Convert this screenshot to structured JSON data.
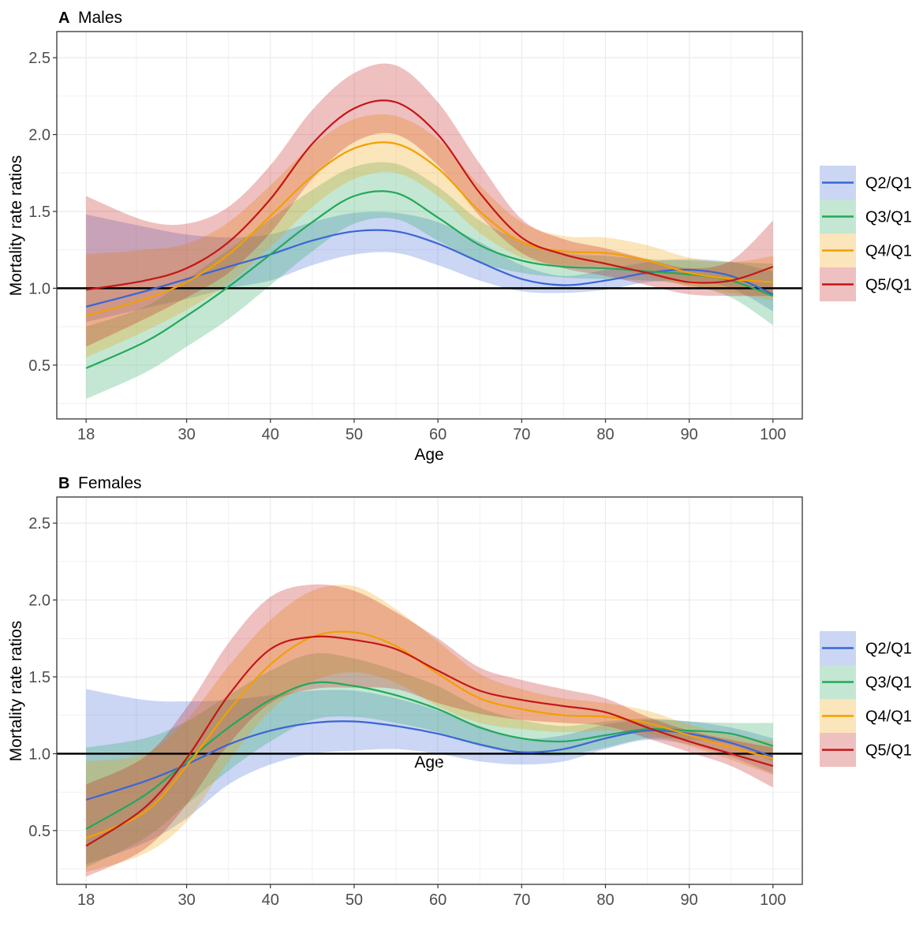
{
  "colors": {
    "Q2/Q1": "#3a66d4",
    "Q3/Q1": "#22a85a",
    "Q4/Q1": "#f2a000",
    "Q5/Q1": "#c41616",
    "reference_line": "#000000",
    "grid": "#ebebeb",
    "panel_border": "#333333"
  },
  "chart_data": [
    {
      "type": "line",
      "panel_letter": "A",
      "title": "Males",
      "xlabel": "Age",
      "ylabel": "Mortality rate ratios",
      "xlim": [
        14.5,
        103.5
      ],
      "ylim": [
        0.15,
        2.67
      ],
      "x_ticks": [
        18,
        30,
        40,
        50,
        60,
        70,
        80,
        90,
        100
      ],
      "y_ticks": [
        0.5,
        1.0,
        1.5,
        2.0,
        2.5
      ],
      "y_tick_labels": [
        "0.5",
        "1.0",
        "1.5",
        "2.0",
        "2.5"
      ],
      "reference_line": 1.0,
      "grid": true,
      "legend_position": "right",
      "x": [
        18,
        25,
        30,
        35,
        40,
        45,
        50,
        55,
        60,
        65,
        70,
        75,
        80,
        85,
        90,
        95,
        100
      ],
      "series": [
        {
          "name": "Q2/Q1",
          "values": [
            0.88,
            0.98,
            1.06,
            1.14,
            1.22,
            1.31,
            1.37,
            1.37,
            1.29,
            1.17,
            1.06,
            1.02,
            1.05,
            1.1,
            1.12,
            1.08,
            0.96
          ],
          "lower": [
            0.78,
            0.87,
            0.93,
            1.0,
            1.05,
            1.15,
            1.22,
            1.23,
            1.15,
            1.05,
            0.98,
            0.97,
            0.99,
            1.04,
            1.05,
            1.0,
            0.85
          ],
          "upper": [
            1.48,
            1.4,
            1.35,
            1.33,
            1.35,
            1.43,
            1.49,
            1.49,
            1.43,
            1.3,
            1.15,
            1.08,
            1.12,
            1.17,
            1.19,
            1.17,
            1.11
          ]
        },
        {
          "name": "Q3/Q1",
          "values": [
            0.48,
            0.65,
            0.82,
            1.01,
            1.22,
            1.43,
            1.6,
            1.62,
            1.46,
            1.28,
            1.18,
            1.14,
            1.13,
            1.11,
            1.09,
            1.05,
            0.95
          ],
          "lower": [
            0.28,
            0.45,
            0.62,
            0.8,
            1.02,
            1.24,
            1.42,
            1.45,
            1.31,
            1.17,
            1.1,
            1.07,
            1.06,
            1.05,
            1.02,
            0.94,
            0.76
          ],
          "upper": [
            0.75,
            0.88,
            1.06,
            1.25,
            1.45,
            1.64,
            1.79,
            1.81,
            1.66,
            1.44,
            1.31,
            1.23,
            1.21,
            1.19,
            1.18,
            1.17,
            1.16
          ]
        },
        {
          "name": "Q4/Q1",
          "values": [
            0.82,
            0.93,
            1.04,
            1.22,
            1.47,
            1.73,
            1.91,
            1.94,
            1.78,
            1.5,
            1.3,
            1.24,
            1.23,
            1.18,
            1.1,
            1.06,
            1.04
          ],
          "lower": [
            0.55,
            0.72,
            0.86,
            1.03,
            1.27,
            1.53,
            1.71,
            1.75,
            1.6,
            1.36,
            1.2,
            1.15,
            1.14,
            1.08,
            1.01,
            0.97,
            0.92
          ],
          "upper": [
            1.22,
            1.25,
            1.29,
            1.43,
            1.67,
            1.93,
            2.1,
            2.12,
            1.97,
            1.67,
            1.43,
            1.34,
            1.33,
            1.28,
            1.2,
            1.17,
            1.21
          ]
        },
        {
          "name": "Q5/Q1",
          "values": [
            0.99,
            1.05,
            1.13,
            1.3,
            1.58,
            1.94,
            2.17,
            2.21,
            2.0,
            1.62,
            1.33,
            1.22,
            1.16,
            1.1,
            1.04,
            1.05,
            1.14
          ],
          "lower": [
            0.62,
            0.8,
            0.94,
            1.1,
            1.36,
            1.71,
            1.95,
            2.0,
            1.8,
            1.47,
            1.23,
            1.13,
            1.08,
            1.02,
            0.96,
            0.95,
            0.95
          ],
          "upper": [
            1.6,
            1.44,
            1.42,
            1.53,
            1.8,
            2.16,
            2.4,
            2.45,
            2.21,
            1.81,
            1.45,
            1.32,
            1.26,
            1.19,
            1.13,
            1.18,
            1.44
          ]
        }
      ]
    },
    {
      "type": "line",
      "panel_letter": "B",
      "title": "Females",
      "xlabel": "Age",
      "ylabel": "Mortality rate ratios",
      "xlim": [
        14.5,
        103.5
      ],
      "ylim": [
        0.15,
        2.67
      ],
      "x_ticks": [
        18,
        30,
        40,
        50,
        60,
        70,
        80,
        90,
        100
      ],
      "y_ticks": [
        0.5,
        1.0,
        1.5,
        2.0,
        2.5
      ],
      "y_tick_labels": [
        "0.5",
        "1.0",
        "1.5",
        "2.0",
        "2.5"
      ],
      "reference_line": 1.0,
      "grid": true,
      "legend_position": "right",
      "x": [
        18,
        25,
        30,
        35,
        40,
        45,
        50,
        55,
        60,
        65,
        70,
        75,
        80,
        85,
        90,
        95,
        100
      ],
      "series": [
        {
          "name": "Q2/Q1",
          "values": [
            0.7,
            0.82,
            0.93,
            1.06,
            1.15,
            1.2,
            1.21,
            1.18,
            1.13,
            1.06,
            1.01,
            1.03,
            1.1,
            1.15,
            1.13,
            1.07,
            0.98
          ],
          "lower": [
            0.28,
            0.42,
            0.58,
            0.8,
            0.93,
            1.0,
            1.02,
            1.03,
            1.0,
            0.95,
            0.93,
            0.95,
            1.03,
            1.09,
            1.06,
            0.98,
            0.87
          ],
          "upper": [
            1.42,
            1.35,
            1.34,
            1.35,
            1.38,
            1.41,
            1.41,
            1.36,
            1.28,
            1.18,
            1.1,
            1.12,
            1.19,
            1.22,
            1.21,
            1.17,
            1.1
          ]
        },
        {
          "name": "Q3/Q1",
          "values": [
            0.51,
            0.73,
            0.95,
            1.17,
            1.35,
            1.46,
            1.44,
            1.38,
            1.29,
            1.17,
            1.1,
            1.08,
            1.12,
            1.16,
            1.15,
            1.13,
            1.05
          ],
          "lower": [
            0.26,
            0.45,
            0.67,
            0.89,
            1.08,
            1.22,
            1.24,
            1.2,
            1.14,
            1.05,
            1.0,
            0.99,
            1.04,
            1.1,
            1.09,
            1.06,
            0.95
          ],
          "upper": [
            1.04,
            1.1,
            1.21,
            1.38,
            1.54,
            1.65,
            1.62,
            1.54,
            1.44,
            1.3,
            1.22,
            1.18,
            1.21,
            1.23,
            1.21,
            1.2,
            1.2
          ]
        },
        {
          "name": "Q4/Q1",
          "values": [
            0.45,
            0.62,
            0.92,
            1.28,
            1.58,
            1.76,
            1.79,
            1.7,
            1.52,
            1.36,
            1.29,
            1.25,
            1.24,
            1.2,
            1.12,
            1.04,
            0.97
          ],
          "lower": [
            0.23,
            0.35,
            0.56,
            0.95,
            1.28,
            1.47,
            1.53,
            1.46,
            1.31,
            1.2,
            1.16,
            1.14,
            1.15,
            1.13,
            1.05,
            0.96,
            0.86
          ],
          "upper": [
            0.95,
            1.0,
            1.22,
            1.57,
            1.87,
            2.06,
            2.09,
            1.94,
            1.73,
            1.52,
            1.42,
            1.36,
            1.33,
            1.28,
            1.19,
            1.12,
            1.08
          ]
        },
        {
          "name": "Q5/Q1",
          "values": [
            0.4,
            0.65,
            0.97,
            1.38,
            1.68,
            1.76,
            1.74,
            1.68,
            1.54,
            1.41,
            1.35,
            1.31,
            1.27,
            1.17,
            1.08,
            1.0,
            0.92
          ],
          "lower": [
            0.2,
            0.38,
            0.67,
            1.06,
            1.33,
            1.42,
            1.43,
            1.42,
            1.33,
            1.26,
            1.22,
            1.2,
            1.18,
            1.1,
            1.01,
            0.92,
            0.78
          ],
          "upper": [
            0.8,
            0.98,
            1.3,
            1.72,
            2.02,
            2.1,
            2.06,
            1.92,
            1.75,
            1.56,
            1.48,
            1.42,
            1.36,
            1.24,
            1.15,
            1.09,
            1.04
          ]
        }
      ]
    }
  ]
}
